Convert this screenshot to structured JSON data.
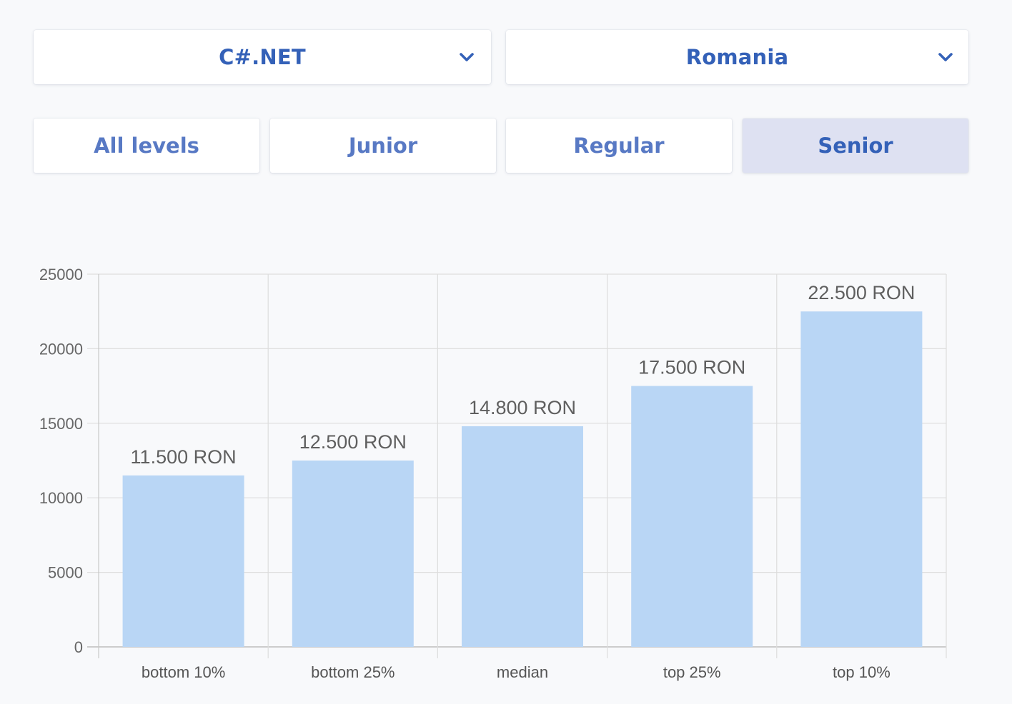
{
  "filters": {
    "language": {
      "selected": "C#.NET",
      "icon": "chevron-down-icon"
    },
    "country": {
      "selected": "Romania",
      "icon": "chevron-down-icon"
    }
  },
  "levels": [
    {
      "label": "All levels",
      "active": false
    },
    {
      "label": "Junior",
      "active": false
    },
    {
      "label": "Regular",
      "active": false
    },
    {
      "label": "Senior",
      "active": true
    }
  ],
  "colors": {
    "accent": "#3461b8",
    "tab_text": "#5879c4",
    "active_tab_bg": "#dee1f2",
    "bar": "#b9d6f5",
    "grid": "#dcdcdc",
    "background": "#f8f9fb"
  },
  "chart_data": {
    "type": "bar",
    "categories": [
      "bottom 10%",
      "bottom 25%",
      "median",
      "top 25%",
      "top 10%"
    ],
    "values": [
      11500,
      12500,
      14800,
      17500,
      22500
    ],
    "value_labels": [
      "11.500 RON",
      "12.500 RON",
      "14.800 RON",
      "17.500 RON",
      "22.500 RON"
    ],
    "ylim": [
      0,
      25000
    ],
    "yticks": [
      0,
      5000,
      10000,
      15000,
      20000,
      25000
    ],
    "grid": true,
    "title": "",
    "xlabel": "",
    "ylabel": ""
  }
}
